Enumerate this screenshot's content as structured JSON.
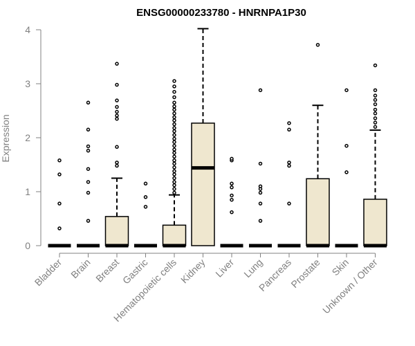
{
  "chart_data": {
    "type": "box",
    "title": "ENSG00000233780 - HNRNPA1P30",
    "xlabel": "",
    "ylabel": "Expression",
    "ylim": [
      0,
      4
    ],
    "yticks": [
      0,
      1,
      2,
      3,
      4
    ],
    "grid": false,
    "legend": "none",
    "box_fill": "#efe7cf",
    "categories": [
      "Bladder",
      "Brain",
      "Breast",
      "Gastric",
      "Hematopoietic cells",
      "Kidney",
      "Liver",
      "Lung",
      "Pancreas",
      "Prostate",
      "Skin",
      "Unknown / Other"
    ],
    "boxes": [
      {
        "category": "Bladder",
        "q1": 0,
        "median": 0,
        "q3": 0,
        "whisker_low": 0,
        "whisker_high": 0,
        "outliers": [
          0.32,
          0.78,
          1.32,
          1.58
        ]
      },
      {
        "category": "Brain",
        "q1": 0,
        "median": 0,
        "q3": 0,
        "whisker_low": 0,
        "whisker_high": 0,
        "outliers": [
          0.46,
          0.98,
          1.18,
          1.42,
          1.76,
          1.84,
          2.15,
          2.65
        ]
      },
      {
        "category": "Breast",
        "q1": 0,
        "median": 0,
        "q3": 0.54,
        "whisker_low": 0,
        "whisker_high": 1.25,
        "outliers": [
          1.48,
          1.54,
          1.83,
          2.35,
          2.41,
          2.48,
          2.57,
          2.69,
          2.98,
          3.37
        ]
      },
      {
        "category": "Gastric",
        "q1": 0,
        "median": 0,
        "q3": 0,
        "whisker_low": 0,
        "whisker_high": 0,
        "outliers": [
          0.72,
          0.9,
          1.15
        ]
      },
      {
        "category": "Hematopoietic cells",
        "q1": 0,
        "median": 0,
        "q3": 0.38,
        "whisker_low": 0,
        "whisker_high": 0.94,
        "outliers": [
          0.98,
          1.05,
          1.12,
          1.18,
          1.25,
          1.32,
          1.38,
          1.45,
          1.52,
          1.58,
          1.65,
          1.72,
          1.78,
          1.85,
          1.92,
          1.98,
          2.05,
          2.12,
          2.18,
          2.25,
          2.32,
          2.38,
          2.45,
          2.52,
          2.58,
          2.65,
          2.75,
          2.85,
          2.95,
          3.05
        ]
      },
      {
        "category": "Kidney",
        "q1": 0,
        "median": 1.44,
        "q3": 2.27,
        "whisker_low": 0,
        "whisker_high": 4.02,
        "outliers": []
      },
      {
        "category": "Liver",
        "q1": 0,
        "median": 0,
        "q3": 0,
        "whisker_low": 0,
        "whisker_high": 0,
        "outliers": [
          0.62,
          0.85,
          0.93,
          1.08,
          1.15,
          1.58,
          1.61
        ]
      },
      {
        "category": "Lung",
        "q1": 0,
        "median": 0,
        "q3": 0,
        "whisker_low": 0,
        "whisker_high": 0,
        "outliers": [
          0.46,
          0.78,
          0.98,
          1.05,
          1.1,
          1.52,
          2.88
        ]
      },
      {
        "category": "Pancreas",
        "q1": 0,
        "median": 0,
        "q3": 0,
        "whisker_low": 0,
        "whisker_high": 0,
        "outliers": [
          0.78,
          1.48,
          1.54,
          2.15,
          2.27
        ]
      },
      {
        "category": "Prostate",
        "q1": 0,
        "median": 0,
        "q3": 1.24,
        "whisker_low": 0,
        "whisker_high": 2.6,
        "outliers": [
          3.72
        ]
      },
      {
        "category": "Skin",
        "q1": 0,
        "median": 0,
        "q3": 0,
        "whisker_low": 0,
        "whisker_high": 0,
        "outliers": [
          1.36,
          1.85,
          2.88
        ]
      },
      {
        "category": "Unknown / Other",
        "q1": 0,
        "median": 0,
        "q3": 0.86,
        "whisker_low": 0,
        "whisker_high": 2.14,
        "outliers": [
          2.2,
          2.28,
          2.36,
          2.45,
          2.52,
          2.62,
          2.7,
          2.78,
          2.88,
          3.34
        ]
      }
    ]
  }
}
